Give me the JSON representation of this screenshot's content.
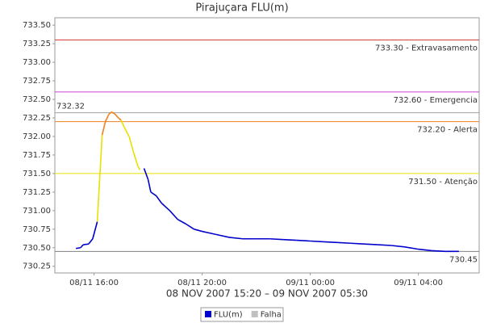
{
  "chart_data": {
    "type": "line",
    "title": "Pirajuçara FLU(m)",
    "x_label": "08 NOV 2007 15:20 – 09 NOV 2007 05:30",
    "x": [
      15.33,
      15.5,
      15.6,
      15.8,
      15.95,
      16.12,
      16.3,
      16.42,
      16.55,
      16.65,
      16.78,
      16.9,
      17.0,
      17.15,
      17.3,
      17.45,
      17.62,
      17.7,
      17.78,
      17.85,
      18.0,
      18.1,
      18.3,
      18.5,
      18.8,
      19.1,
      19.4,
      19.7,
      20.0,
      20.5,
      21.0,
      21.5,
      22.0,
      22.5,
      23.0,
      23.5,
      24.0,
      24.5,
      25.0,
      25.5,
      26.0,
      26.5,
      27.0,
      27.5,
      28.0,
      28.5,
      29.0,
      29.5
    ],
    "series": [
      {
        "name": "FLU(m)",
        "color": "#0000cc",
        "values": [
          730.49,
          730.5,
          730.54,
          730.55,
          730.62,
          730.85,
          732.02,
          732.2,
          732.3,
          732.33,
          732.3,
          732.25,
          732.22,
          732.1,
          732.0,
          731.8,
          731.6,
          731.55,
          null,
          731.57,
          731.42,
          731.25,
          731.2,
          731.1,
          731.0,
          730.88,
          730.82,
          730.75,
          730.72,
          730.68,
          730.64,
          730.62,
          730.62,
          730.62,
          730.61,
          730.6,
          730.59,
          730.58,
          730.57,
          730.56,
          730.55,
          730.54,
          730.53,
          730.51,
          730.48,
          730.46,
          730.45,
          730.45
        ]
      },
      {
        "name": "Falha",
        "color": "#c0c0c0",
        "values": [
          null,
          null,
          null,
          null,
          null,
          null,
          null,
          null,
          null,
          null,
          null,
          null,
          null,
          null,
          null,
          null,
          null,
          null,
          null,
          null,
          null,
          null,
          null,
          null,
          null,
          null,
          null,
          null,
          null,
          null,
          null,
          null,
          null,
          null,
          null,
          null,
          null,
          null,
          null,
          null,
          null,
          null,
          null,
          null,
          null,
          null,
          null,
          null
        ]
      }
    ],
    "thresholds": [
      {
        "value": 733.3,
        "label": "733.30 - Extravasamento",
        "color": "#d04040"
      },
      {
        "value": 732.6,
        "label": "732.60 - Emergencia",
        "color": "#d040d0"
      },
      {
        "value": 732.2,
        "label": "732.20 - Alerta",
        "color": "#f08020"
      },
      {
        "value": 731.5,
        "label": "731.50 - Atenção",
        "color": "#e8e000"
      }
    ],
    "markers": [
      {
        "value": 732.32,
        "color": "#a0a0a0",
        "side": "left"
      },
      {
        "value": 730.45,
        "color": "#808080",
        "side": "right"
      }
    ],
    "xlim": [
      14.55,
      30.25
    ],
    "xticks": [
      {
        "value": 16,
        "label": "08/11 16:00"
      },
      {
        "value": 20,
        "label": "08/11 20:00"
      },
      {
        "value": 24,
        "label": "09/11 00:00"
      },
      {
        "value": 28,
        "label": "09/11 04:00"
      }
    ],
    "ylim": [
      730.16,
      733.6
    ],
    "yticks": [
      730.25,
      {
        "value": 730.5,
        "label": "730.50"
      },
      730.75,
      {
        "value": 731,
        "label": "731.00"
      },
      731.25,
      {
        "value": 731.5,
        "label": "731.50"
      },
      731.75,
      {
        "value": 732,
        "label": "732.00"
      },
      732.25,
      {
        "value": 732.5,
        "label": "732.50"
      },
      732.75,
      {
        "value": 733,
        "label": "733.00"
      },
      733.25,
      {
        "value": 733.5,
        "label": "733.50"
      }
    ]
  }
}
